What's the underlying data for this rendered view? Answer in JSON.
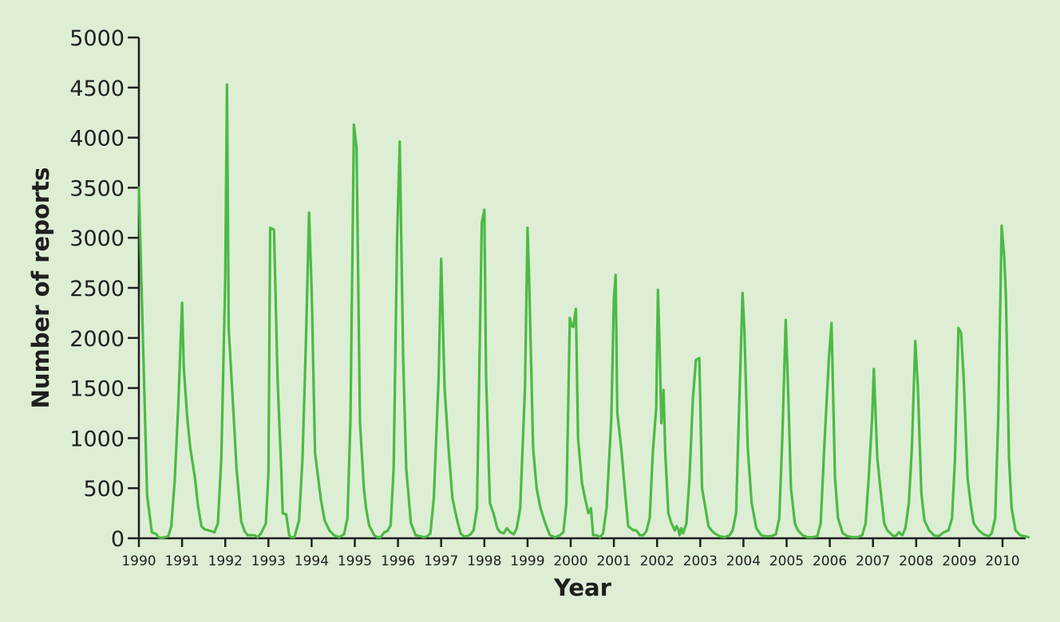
{
  "chart_data": {
    "type": "line",
    "title": "",
    "xlabel": "Year",
    "ylabel": "Number of reports",
    "xlim": [
      1990,
      2010.65
    ],
    "ylim": [
      0,
      5000
    ],
    "yticks": [
      0,
      500,
      1000,
      1500,
      2000,
      2500,
      3000,
      3500,
      4000,
      4500,
      5000
    ],
    "yticklabels": [
      "0",
      "500",
      "1000",
      "1500",
      "2000",
      "2500",
      "3000",
      "3500",
      "4000",
      "4500",
      "5000"
    ],
    "xticks": [
      1990,
      1991,
      1992,
      1993,
      1994,
      1995,
      1996,
      1997,
      1998,
      1999,
      2000,
      2001,
      2002,
      2003,
      2004,
      2005,
      2006,
      2007,
      2008,
      2009,
      2010
    ],
    "xticklabels": [
      "1990",
      "1991",
      "1992",
      "1993",
      "1994",
      "1995",
      "1996",
      "1997",
      "1998",
      "1999",
      "2000",
      "2001",
      "2002",
      "2003",
      "2004",
      "2005",
      "2006",
      "2007",
      "2008",
      "2009",
      "2010"
    ],
    "grid": false,
    "line_color": "#4cba44",
    "axis_color": "#1f1f1f",
    "series": [
      {
        "x": [
          1990.0,
          1990.19,
          1990.3,
          1990.41,
          1990.45,
          1990.52,
          1990.6,
          1990.68,
          1990.75,
          1990.83,
          1990.91,
          1991.0,
          1991.04,
          1991.12,
          1991.19,
          1991.3,
          1991.37,
          1991.45,
          1991.52,
          1991.6,
          1991.68,
          1991.75,
          1991.83,
          1991.91,
          1992.0,
          1992.04,
          1992.08,
          1992.21,
          1992.26,
          1992.37,
          1992.45,
          1992.52,
          1992.6,
          1992.68,
          1992.75,
          1992.83,
          1992.94,
          1993.0,
          1993.04,
          1993.13,
          1993.21,
          1993.3,
          1993.33,
          1993.41,
          1993.48,
          1993.52,
          1993.6,
          1993.71,
          1993.79,
          1993.87,
          1993.94,
          1994.0,
          1994.08,
          1994.21,
          1994.3,
          1994.41,
          1994.52,
          1994.64,
          1994.75,
          1994.83,
          1994.9,
          1994.98,
          1995.04,
          1995.12,
          1995.21,
          1995.26,
          1995.33,
          1995.45,
          1995.52,
          1995.6,
          1995.68,
          1995.75,
          1995.83,
          1995.9,
          1995.98,
          1996.04,
          1996.12,
          1996.19,
          1996.3,
          1996.41,
          1996.52,
          1996.6,
          1996.68,
          1996.75,
          1996.83,
          1996.94,
          1997.0,
          1997.08,
          1997.17,
          1997.26,
          1997.37,
          1997.45,
          1997.52,
          1997.6,
          1997.68,
          1997.75,
          1997.83,
          1997.94,
          1998.0,
          1998.04,
          1998.13,
          1998.21,
          1998.3,
          1998.37,
          1998.45,
          1998.52,
          1998.6,
          1998.68,
          1998.75,
          1998.83,
          1998.94,
          1999.0,
          1999.04,
          1999.13,
          1999.21,
          1999.3,
          1999.41,
          1999.52,
          1999.64,
          1999.75,
          1999.83,
          1999.9,
          1999.98,
          2000.02,
          2000.06,
          2000.12,
          2000.17,
          2000.26,
          2000.33,
          2000.41,
          2000.47,
          2000.52,
          2000.6,
          2000.68,
          2000.75,
          2000.83,
          2000.94,
          2001.0,
          2001.04,
          2001.08,
          2001.17,
          2001.26,
          2001.33,
          2001.45,
          2001.52,
          2001.6,
          2001.68,
          2001.75,
          2001.83,
          2001.9,
          2001.98,
          2002.02,
          2002.06,
          2002.1,
          2002.15,
          2002.19,
          2002.26,
          2002.33,
          2002.41,
          2002.45,
          2002.49,
          2002.52,
          2002.56,
          2002.6,
          2002.68,
          2002.75,
          2002.83,
          2002.9,
          2002.98,
          2003.04,
          2003.12,
          2003.19,
          2003.26,
          2003.33,
          2003.45,
          2003.56,
          2003.68,
          2003.75,
          2003.83,
          2003.9,
          2003.98,
          2004.02,
          2004.1,
          2004.19,
          2004.3,
          2004.41,
          2004.52,
          2004.64,
          2004.75,
          2004.83,
          2004.9,
          2004.98,
          2005.04,
          2005.1,
          2005.19,
          2005.26,
          2005.37,
          2005.49,
          2005.6,
          2005.71,
          2005.79,
          2005.87,
          2005.98,
          2006.04,
          2006.12,
          2006.19,
          2006.3,
          2006.41,
          2006.52,
          2006.64,
          2006.75,
          2006.83,
          2006.9,
          2006.98,
          2007.02,
          2007.1,
          2007.17,
          2007.26,
          2007.33,
          2007.45,
          2007.52,
          2007.6,
          2007.68,
          2007.75,
          2007.83,
          2007.9,
          2007.98,
          2008.04,
          2008.12,
          2008.19,
          2008.3,
          2008.41,
          2008.52,
          2008.64,
          2008.75,
          2008.83,
          2008.9,
          2008.98,
          2009.04,
          2009.1,
          2009.19,
          2009.26,
          2009.33,
          2009.45,
          2009.56,
          2009.68,
          2009.75,
          2009.83,
          2009.9,
          2009.98,
          2010.04,
          2010.08,
          2010.15,
          2010.21,
          2010.3,
          2010.41,
          2010.52,
          2010.6
        ],
        "y": [
          3500,
          430,
          60,
          40,
          10,
          5,
          10,
          20,
          120,
          580,
          1300,
          2350,
          1700,
          1200,
          900,
          600,
          320,
          120,
          90,
          80,
          70,
          60,
          150,
          800,
          2600,
          4530,
          2100,
          1100,
          700,
          170,
          70,
          30,
          30,
          30,
          10,
          50,
          150,
          650,
          3100,
          3080,
          1600,
          650,
          250,
          240,
          30,
          10,
          10,
          180,
          800,
          2000,
          3250,
          2500,
          850,
          400,
          180,
          80,
          30,
          10,
          40,
          200,
          1200,
          4130,
          3900,
          1150,
          500,
          300,
          130,
          30,
          10,
          10,
          60,
          70,
          130,
          700,
          3000,
          3960,
          1800,
          700,
          150,
          30,
          20,
          10,
          20,
          50,
          400,
          1600,
          2790,
          1500,
          900,
          400,
          180,
          50,
          20,
          20,
          40,
          80,
          300,
          3150,
          3280,
          1600,
          350,
          250,
          100,
          60,
          50,
          100,
          60,
          40,
          100,
          300,
          1500,
          3100,
          2530,
          900,
          500,
          300,
          150,
          30,
          10,
          30,
          60,
          350,
          2200,
          2120,
          2110,
          2290,
          1000,
          550,
          400,
          250,
          300,
          30,
          30,
          10,
          50,
          300,
          1200,
          2400,
          2630,
          1250,
          900,
          450,
          120,
          80,
          80,
          30,
          30,
          70,
          200,
          850,
          1300,
          2480,
          1900,
          1150,
          1480,
          850,
          250,
          150,
          80,
          120,
          90,
          30,
          100,
          50,
          150,
          600,
          1400,
          1780,
          1800,
          500,
          300,
          120,
          80,
          50,
          20,
          10,
          30,
          80,
          250,
          1300,
          2450,
          2100,
          900,
          350,
          100,
          30,
          20,
          20,
          40,
          200,
          1000,
          2180,
          1400,
          500,
          150,
          80,
          30,
          10,
          10,
          20,
          150,
          900,
          1800,
          2150,
          600,
          200,
          50,
          20,
          10,
          10,
          30,
          150,
          600,
          1200,
          1690,
          800,
          500,
          150,
          80,
          30,
          20,
          60,
          30,
          100,
          350,
          900,
          1970,
          1500,
          450,
          180,
          80,
          30,
          20,
          60,
          80,
          200,
          800,
          2100,
          2050,
          1600,
          600,
          350,
          150,
          80,
          40,
          20,
          50,
          200,
          1200,
          3120,
          2800,
          2400,
          800,
          300,
          80,
          30,
          20,
          10
        ]
      }
    ]
  }
}
